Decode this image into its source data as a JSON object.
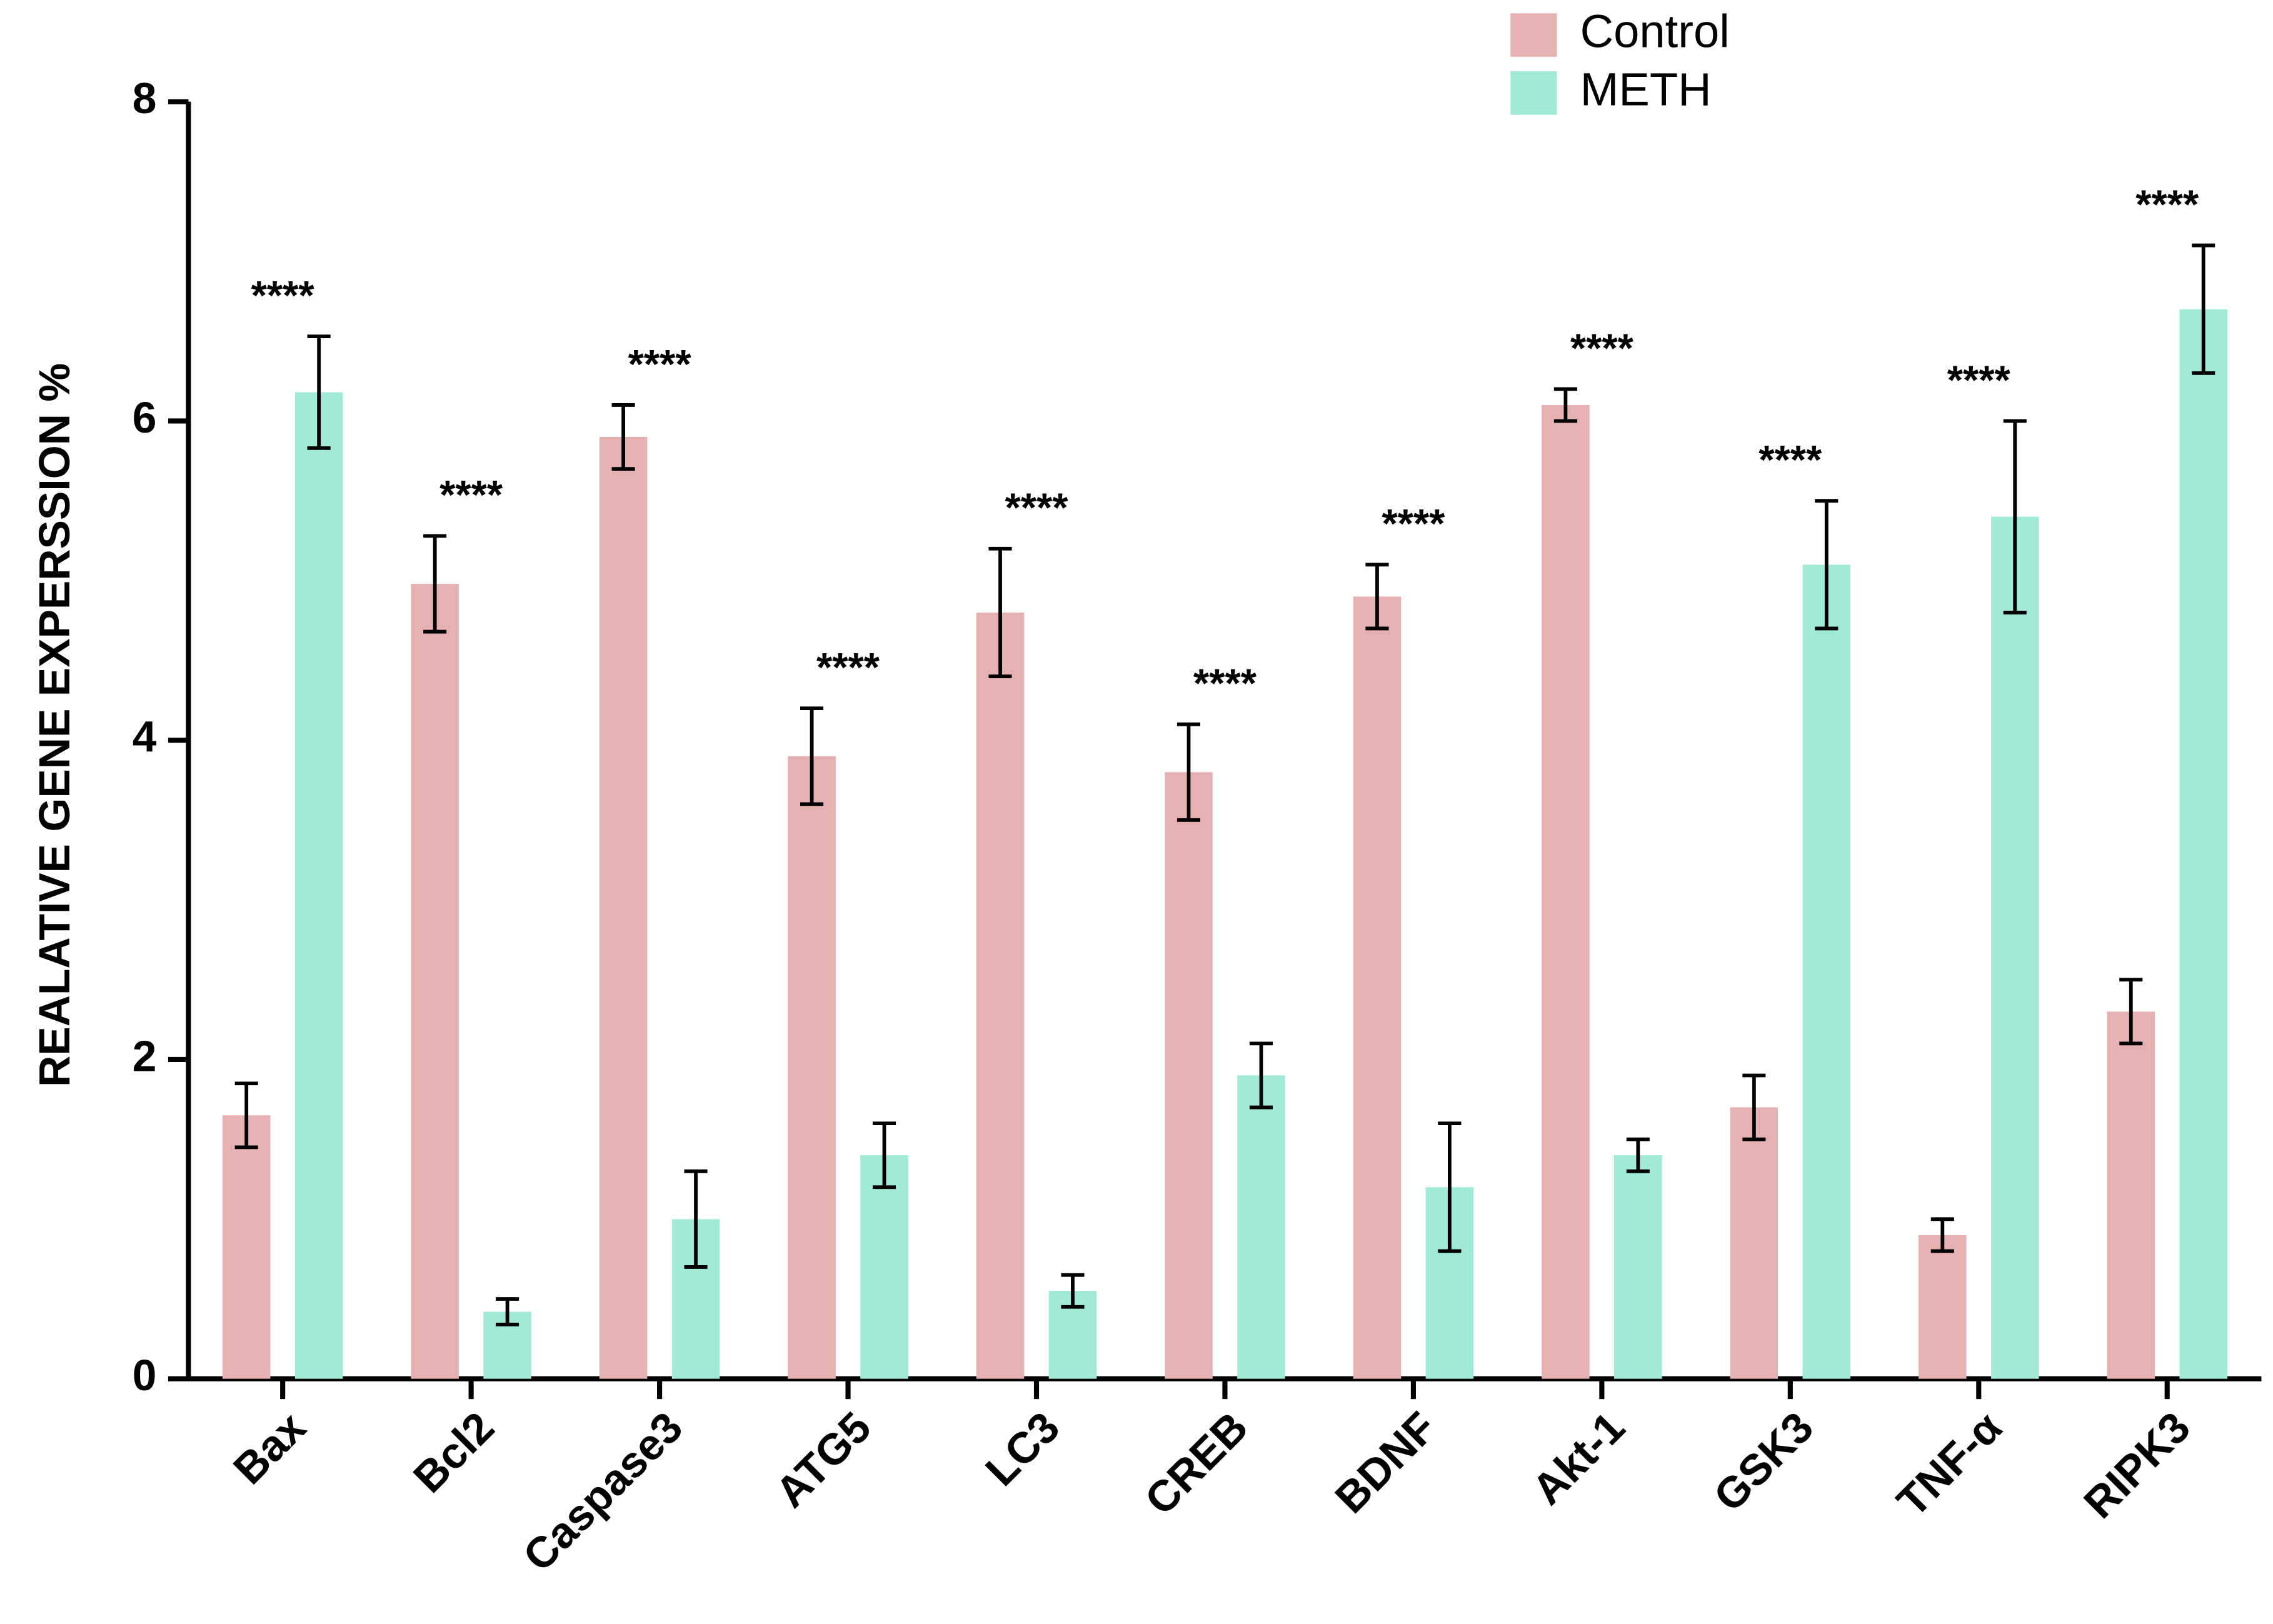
{
  "chart_data": {
    "type": "bar",
    "ylabel": "REALATIVE GENE EXPERSSION %",
    "categories": [
      "Bax",
      "Bcl2",
      "Caspase3",
      "ATG5",
      "LC3",
      "CREB",
      "BDNF",
      "Akt-1",
      "GSK3",
      "TNF-α",
      "RIPK3"
    ],
    "series": [
      {
        "name": "Control",
        "color": "#e6b1b1",
        "values": [
          1.65,
          4.98,
          5.9,
          3.9,
          4.8,
          3.8,
          4.9,
          6.1,
          1.7,
          0.9,
          2.3
        ],
        "errors": [
          0.2,
          0.3,
          0.2,
          0.3,
          0.4,
          0.3,
          0.2,
          0.1,
          0.2,
          0.1,
          0.2
        ]
      },
      {
        "name": "METH",
        "color": "#a1ead7",
        "values": [
          6.18,
          0.42,
          1.0,
          1.4,
          0.55,
          1.9,
          1.2,
          1.4,
          5.1,
          5.4,
          6.7
        ],
        "errors": [
          0.35,
          0.08,
          0.3,
          0.2,
          0.1,
          0.2,
          0.4,
          0.1,
          0.4,
          0.6,
          0.4
        ]
      }
    ],
    "annotations": [
      "****",
      "****",
      "****",
      "****",
      "****",
      "****",
      "****",
      "****",
      "****",
      "****",
      "****"
    ],
    "ylim": [
      0,
      8
    ],
    "yticks": [
      0,
      2,
      4,
      6,
      8
    ],
    "grid": false,
    "legend": "top-right"
  }
}
